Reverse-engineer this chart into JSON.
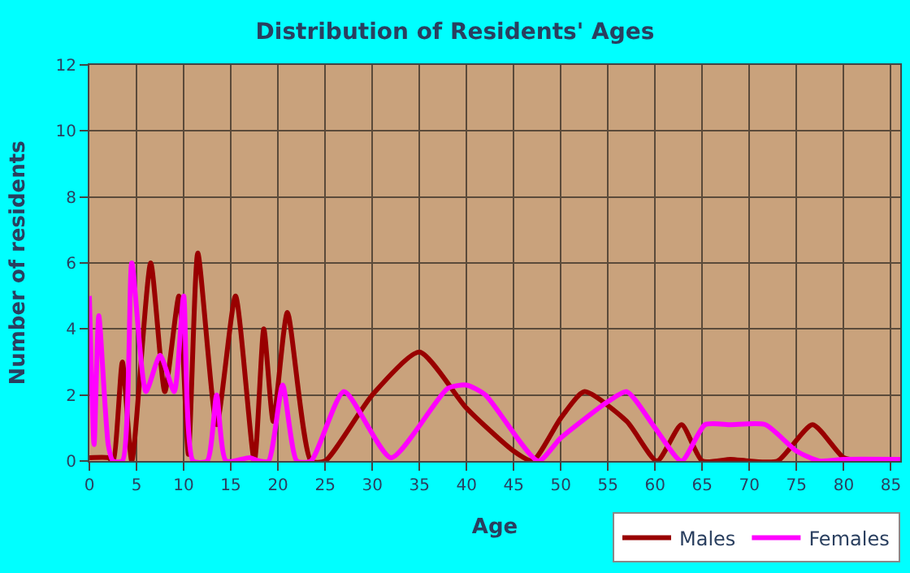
{
  "chart_data": {
    "type": "line",
    "title": "Distribution of Residents' Ages",
    "xlabel": "Age",
    "ylabel": "Number of residents",
    "xlim": [
      0,
      86
    ],
    "xticks": [
      0,
      5,
      10,
      15,
      20,
      25,
      30,
      35,
      40,
      45,
      50,
      55,
      60,
      65,
      70,
      75,
      80,
      85
    ],
    "ylim": [
      0,
      12
    ],
    "yticks": [
      0,
      2,
      4,
      6,
      8,
      10,
      12
    ],
    "grid": true,
    "legend": "bottom right",
    "marker": "none",
    "line_style": "solid",
    "series": [
      {
        "name": "Males",
        "color": "#990000",
        "x": [
          0,
          2,
          2.5,
          3.5,
          4.5,
          6.5,
          8,
          9.5,
          10.5,
          11.5,
          13.5,
          15.5,
          17.5,
          18.5,
          19.5,
          21,
          23.5,
          25,
          30,
          35,
          40,
          45,
          47,
          50,
          52.5,
          57,
          60.2,
          62.8,
          65,
          68,
          70,
          73,
          76.7,
          80,
          82,
          86
        ],
        "values": [
          0.1,
          0.1,
          0,
          3,
          0,
          6,
          2.1,
          5,
          0.2,
          6.3,
          1.1,
          5,
          0,
          4,
          1.2,
          4.5,
          0,
          0,
          2,
          3.3,
          1.6,
          0.3,
          0,
          1.3,
          2.1,
          1.2,
          0,
          1.1,
          0,
          0.05,
          0,
          0,
          1.1,
          0.1,
          0,
          0
        ]
      },
      {
        "name": "Females",
        "color": "#ff00ff",
        "x": [
          0,
          0.5,
          1,
          2,
          2.5,
          3.5,
          4.5,
          6,
          7.5,
          9,
          10,
          11,
          12.5,
          13.5,
          14.5,
          17,
          18,
          19,
          20.5,
          22,
          23.5,
          27,
          32,
          38,
          40,
          42,
          47.6,
          50,
          55,
          57,
          60,
          62.8,
          65.3,
          68,
          71.7,
          75,
          77.4,
          80,
          86
        ],
        "values": [
          5,
          0.5,
          4.4,
          0.5,
          0,
          0,
          6,
          2.1,
          3.2,
          2.1,
          5,
          0,
          0,
          2,
          0,
          0.1,
          0,
          0,
          2.3,
          0,
          0,
          2.1,
          0.1,
          2.2,
          2.3,
          2,
          0,
          0.7,
          1.8,
          2.1,
          1,
          0,
          1.1,
          1.1,
          1.1,
          0.3,
          0,
          0.05,
          0.05
        ]
      }
    ]
  }
}
